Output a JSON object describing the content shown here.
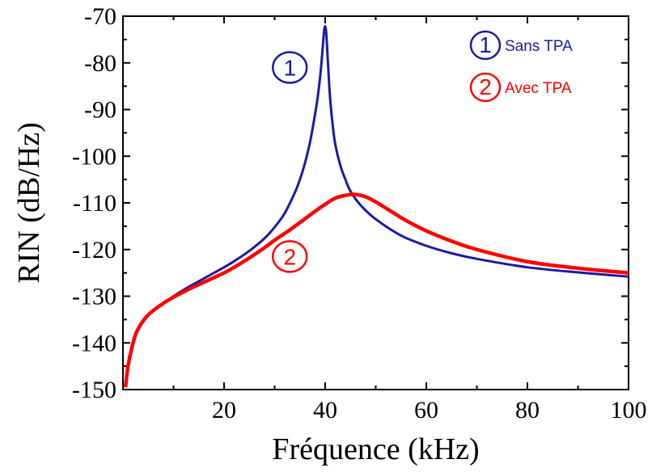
{
  "chart_data": {
    "type": "line",
    "title": "",
    "xlabel": "Fréquence (kHz)",
    "ylabel": "RIN (dB/Hz)",
    "xlim": [
      0,
      100
    ],
    "ylim": [
      -150,
      -70
    ],
    "x_ticks": [
      20,
      40,
      60,
      80,
      100
    ],
    "y_ticks": [
      -150,
      -140,
      -130,
      -120,
      -110,
      -100,
      -90,
      -80,
      -70
    ],
    "grid": false,
    "legend_position": "top-right",
    "series": [
      {
        "name": "Sans TPA",
        "marker": "1",
        "color": "#1a1aa6",
        "x": [
          0.5,
          1,
          2,
          3,
          5,
          8,
          10,
          13,
          15,
          18,
          20,
          22,
          25,
          28,
          30,
          32,
          34,
          35,
          36,
          37,
          38,
          38.5,
          39,
          39.3,
          39.6,
          39.8,
          40,
          40.2,
          40.4,
          40.7,
          41,
          41.5,
          42,
          43,
          44,
          45,
          47,
          50,
          55,
          60,
          65,
          70,
          80,
          90,
          100
        ],
        "y": [
          -149.5,
          -145,
          -140,
          -137,
          -134,
          -131.5,
          -130,
          -128,
          -126.8,
          -125,
          -123.8,
          -122.5,
          -120.3,
          -117.6,
          -115.2,
          -112.2,
          -107.8,
          -105,
          -101.5,
          -97,
          -91,
          -87.5,
          -83,
          -79.5,
          -75.5,
          -73,
          -72.2,
          -73.5,
          -77,
          -83,
          -88,
          -93.5,
          -97.5,
          -102,
          -105,
          -107.5,
          -110.5,
          -113.5,
          -117,
          -119.2,
          -120.8,
          -122,
          -123.8,
          -124.9,
          -125.8
        ]
      },
      {
        "name": "Avec TPA",
        "marker": "2",
        "color": "#ff0000",
        "x": [
          0.5,
          1,
          2,
          3,
          5,
          8,
          10,
          13,
          15,
          18,
          20,
          22,
          25,
          28,
          30,
          33,
          36,
          38,
          40,
          42,
          44,
          46,
          48,
          50,
          53,
          56,
          60,
          65,
          70,
          80,
          90,
          100
        ],
        "y": [
          -149.5,
          -145,
          -140,
          -137,
          -134,
          -131.5,
          -130.2,
          -128.5,
          -127.5,
          -126,
          -125,
          -123.8,
          -121.8,
          -119.6,
          -118,
          -115.8,
          -113.4,
          -111.8,
          -110.3,
          -109,
          -108.4,
          -108.2,
          -108.7,
          -109.8,
          -111.8,
          -113.8,
          -116,
          -118.2,
          -120,
          -122.6,
          -124,
          -125
        ]
      }
    ],
    "legend": [
      {
        "marker": "1",
        "label": "Sans TPA",
        "color": "#1a1aa6"
      },
      {
        "marker": "2",
        "label": "Avec TPA",
        "color": "#ff0000"
      }
    ],
    "annotations": [
      {
        "text": "1",
        "x": 33,
        "y": -81,
        "color": "#1a1aa6"
      },
      {
        "text": "2",
        "x": 33,
        "y": -121.5,
        "color": "#ff0000"
      }
    ]
  }
}
